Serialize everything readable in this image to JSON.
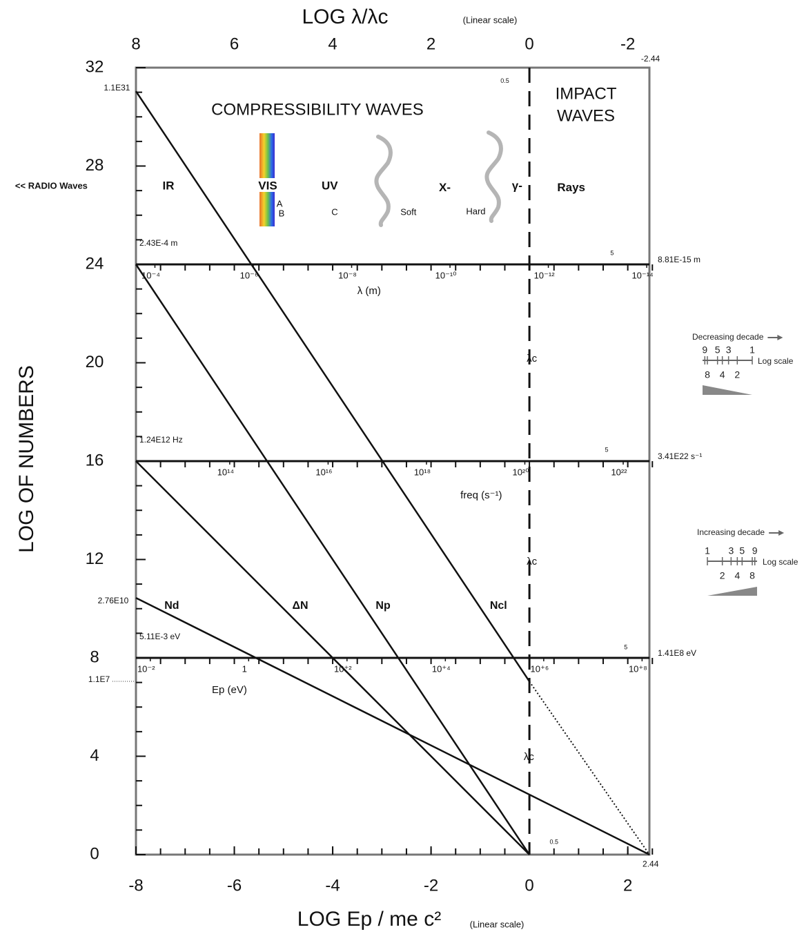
{
  "chart_data": {
    "type": "line",
    "y_label": "LOG OF NUMBERS",
    "x_label": "LOG  Ep / me c²",
    "x_label_note": "(Linear scale)",
    "x2_label": "LOG  λ/λc",
    "x2_label_note": "(Linear scale)",
    "xlim": [
      -8,
      2.44
    ],
    "xticks": [
      -8,
      -6,
      -4,
      -2,
      0,
      2
    ],
    "x2lim": [
      8,
      -2.44
    ],
    "x2ticks": [
      8,
      6,
      4,
      2,
      0,
      -2
    ],
    "ylim": [
      0,
      32
    ],
    "yticks": [
      0,
      4,
      8,
      12,
      16,
      20,
      24,
      28,
      32
    ],
    "grid": false,
    "minor_ticks": true,
    "series": [
      {
        "name": "Nd",
        "color": "#111111",
        "x": [
          -8,
          2.44
        ],
        "values": [
          10.44,
          0
        ],
        "segment_styles": [
          "solid"
        ]
      },
      {
        "name": "ΔN",
        "color": "#111111",
        "x": [
          -8,
          0
        ],
        "values": [
          16,
          0
        ],
        "segment_styles": [
          "solid"
        ]
      },
      {
        "name": "Np",
        "color": "#111111",
        "x": [
          -8,
          0
        ],
        "values": [
          24,
          0
        ],
        "segment_styles": [
          "solid"
        ]
      },
      {
        "name": "Ncl",
        "color": "#111111",
        "x": [
          -8,
          0,
          2.44
        ],
        "values": [
          31.04,
          7.04,
          0
        ],
        "segment_styles": [
          "solid",
          "dotted"
        ]
      }
    ],
    "reference_line": {
      "x": 0,
      "style": "dashed"
    },
    "scales": [
      {
        "y": 24,
        "lim": [
          -3.6144,
          -14.055
        ],
        "left_label": "2.43E-4 m",
        "right_label": "8.81E-15 m",
        "ticks": [
          {
            "value": -4,
            "label": "10⁻⁴"
          },
          {
            "value": -6,
            "label": "10⁻⁶"
          },
          {
            "value": -8,
            "label": "10⁻⁸"
          },
          {
            "value": -10,
            "label": "10⁻¹⁰"
          },
          {
            "value": -12,
            "label": "10⁻¹²"
          },
          {
            "value": -14,
            "label": "10⁻¹⁴"
          }
        ]
      },
      {
        "y": 16,
        "lim": [
          12.0934,
          22.5328
        ],
        "left_label": "1.24E12 Hz",
        "right_label": "3.41E22 s⁻¹",
        "ticks": [
          {
            "value": 14,
            "label": "10¹⁴"
          },
          {
            "value": 16,
            "label": "10¹⁶"
          },
          {
            "value": 18,
            "label": "10¹⁸"
          },
          {
            "value": 20,
            "label": "10²⁰"
          },
          {
            "value": 22,
            "label": "10²²"
          }
        ]
      },
      {
        "y": 8,
        "lim": [
          -2.2916,
          8.1492
        ],
        "left_label": "5.11E-3 eV",
        "right_label": "1.41E8 eV",
        "ticks": [
          {
            "value": -2,
            "label": "10⁻²"
          },
          {
            "value": 0,
            "label": "1"
          },
          {
            "value": 2,
            "label": "10⁺²"
          },
          {
            "value": 4,
            "label": "10⁺⁴"
          },
          {
            "value": 6,
            "label": "10⁺⁶"
          },
          {
            "value": 8,
            "label": "10⁺⁸"
          }
        ]
      }
    ],
    "annotations": [
      {
        "text": "COMPRESSIBILITY WAVES",
        "x": -4.31,
        "y": 30.26,
        "style": "heading",
        "anchor": "middle"
      },
      {
        "text": "IMPACT",
        "x": 1.15,
        "y": 30.9,
        "style": "heading",
        "anchor": "middle"
      },
      {
        "text": "WAVES",
        "x": 1.15,
        "y": 30.0,
        "style": "heading",
        "anchor": "middle"
      },
      {
        "text": "IR",
        "x": -7.34,
        "y": 27.17,
        "style": "band",
        "anchor": "middle"
      },
      {
        "text": "VIS",
        "x": -5.32,
        "y": 27.17,
        "style": "band",
        "anchor": "middle"
      },
      {
        "text": "UV",
        "x": -4.06,
        "y": 27.17,
        "style": "band",
        "anchor": "middle"
      },
      {
        "text": "X-",
        "x": -1.72,
        "y": 27.1,
        "style": "band",
        "anchor": "middle"
      },
      {
        "text": "γ-",
        "x": -0.25,
        "y": 27.17,
        "style": "band",
        "anchor": "middle"
      },
      {
        "text": "Rays",
        "x": 0.85,
        "y": 27.1,
        "style": "band",
        "anchor": "middle"
      },
      {
        "text": "<< RADIO Waves",
        "x": -9.72,
        "y": 27.17,
        "style": "label",
        "anchor": "middle"
      },
      {
        "text": "A",
        "x": -5.08,
        "y": 26.44,
        "style": "sub",
        "anchor": "middle"
      },
      {
        "text": "B",
        "x": -5.04,
        "y": 26.05,
        "style": "sub",
        "anchor": "middle"
      },
      {
        "text": "C",
        "x": -3.96,
        "y": 26.1,
        "style": "sub",
        "anchor": "middle"
      },
      {
        "text": "Soft",
        "x": -2.46,
        "y": 26.1,
        "style": "sub",
        "anchor": "middle"
      },
      {
        "text": "Hard",
        "x": -1.09,
        "y": 26.13,
        "style": "sub",
        "anchor": "middle"
      },
      {
        "text": "λc",
        "x": 0.05,
        "y": 20.15,
        "style": "note",
        "anchor": "middle"
      },
      {
        "text": "λc",
        "x": 0.05,
        "y": 11.9,
        "style": "note",
        "anchor": "middle"
      },
      {
        "text": "λc",
        "x": -0.01,
        "y": 3.96,
        "style": "note",
        "anchor": "middle"
      },
      {
        "text": "λ (m)",
        "x": -3.26,
        "y": 22.9,
        "style": "note",
        "anchor": "middle"
      },
      {
        "text": "freq (s⁻¹)",
        "x": -0.98,
        "y": 14.6,
        "style": "note",
        "anchor": "middle"
      },
      {
        "text": "Ep (eV)",
        "x": -6.1,
        "y": 6.68,
        "style": "note",
        "anchor": "middle"
      },
      {
        "text": "1.1E31",
        "x": -8.12,
        "y": 31.16,
        "style": "value",
        "anchor": "end"
      },
      {
        "text": "2.76E10",
        "x": -8.15,
        "y": 10.3,
        "style": "value",
        "anchor": "end"
      },
      {
        "text": "1.1E7",
        "x": -8.53,
        "y": 7.1,
        "style": "value",
        "anchor": "end"
      },
      {
        "text": "-2.44",
        "x": 2.27,
        "y": 32.34,
        "style": "value",
        "anchor": "start"
      },
      {
        "text": "2.44",
        "x": 2.3,
        "y": -0.4,
        "style": "value",
        "anchor": "start"
      },
      {
        "text": "0.5",
        "x": -0.5,
        "y": 31.45,
        "style": "small",
        "anchor": "middle"
      },
      {
        "text": "0.5",
        "x": 0.5,
        "y": 0.5,
        "style": "small",
        "anchor": "middle"
      },
      {
        "text": "5",
        "x": 1.68,
        "y": 24.45,
        "style": "small",
        "anchor": "middle"
      },
      {
        "text": "5",
        "x": 1.57,
        "y": 16.45,
        "style": "small",
        "anchor": "middle"
      },
      {
        "text": "5",
        "x": 1.96,
        "y": 8.42,
        "style": "small",
        "anchor": "middle"
      }
    ],
    "decade_keys": [
      {
        "title": "Decreasing decade",
        "top": [
          9,
          5,
          3,
          1
        ],
        "bottom": [
          8,
          4,
          2
        ],
        "note": "Log scale",
        "reversed": true
      },
      {
        "title": "Increasing decade",
        "top": [
          1,
          3,
          5,
          9
        ],
        "bottom": [
          2,
          4,
          8
        ],
        "note": "Log scale",
        "reversed": false
      }
    ]
  }
}
